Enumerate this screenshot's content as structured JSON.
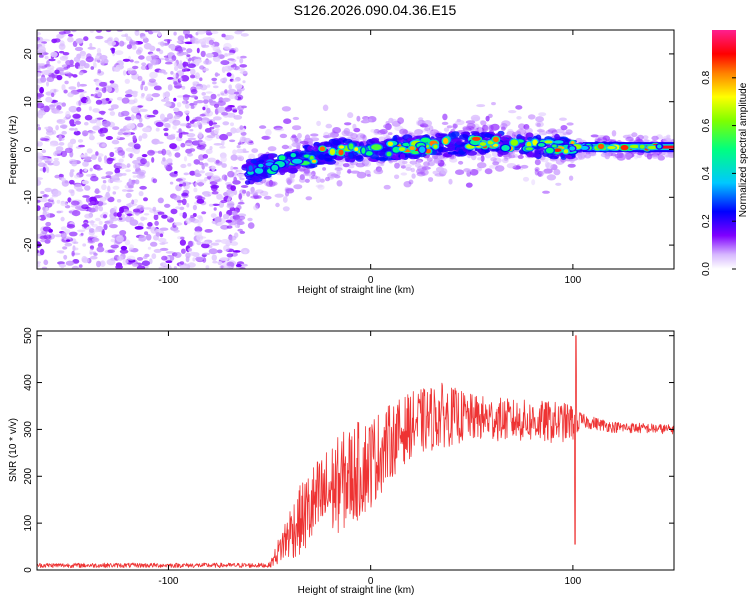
{
  "title": "S126.2026.090.04.36.E15",
  "chart_data": [
    {
      "type": "heatmap",
      "name": "spectrogram",
      "xlabel": "Height of straight line (km)",
      "ylabel": "Frequency (Hz)",
      "xlim": [
        -165,
        150
      ],
      "ylim": [
        -25,
        25
      ],
      "xticks": [
        -100,
        0,
        100
      ],
      "yticks": [
        -20,
        -10,
        0,
        10,
        20
      ],
      "noise_region_x": [
        -165,
        -62
      ],
      "signal_track": [
        {
          "x": -62,
          "y": -5
        },
        {
          "x": -55,
          "y": -4
        },
        {
          "x": -45,
          "y": -3
        },
        {
          "x": -35,
          "y": -2
        },
        {
          "x": -25,
          "y": -1
        },
        {
          "x": -15,
          "y": 0
        },
        {
          "x": 0,
          "y": 0
        },
        {
          "x": 20,
          "y": 0.5
        },
        {
          "x": 40,
          "y": 1
        },
        {
          "x": 55,
          "y": 1.5
        },
        {
          "x": 70,
          "y": 1
        },
        {
          "x": 90,
          "y": 0.5
        },
        {
          "x": 105,
          "y": 0.5
        },
        {
          "x": 150,
          "y": 0.5
        }
      ],
      "colorbar": {
        "label": "Normalized spectral amplitude",
        "range": [
          0,
          1
        ],
        "ticks": [
          "0.0",
          "0.2",
          "0.4",
          "0.6",
          "0.8"
        ]
      }
    },
    {
      "type": "line",
      "name": "snr",
      "xlabel": "Height of straight line (km)",
      "ylabel": "SNR (10 * v/v)",
      "xlim": [
        -165,
        150
      ],
      "ylim": [
        0,
        510
      ],
      "xticks": [
        -100,
        0,
        100
      ],
      "yticks": [
        0,
        100,
        200,
        300,
        400,
        500
      ],
      "color": "#ee3333",
      "envelope": [
        {
          "x": -165,
          "mean": 10,
          "spread": 5
        },
        {
          "x": -50,
          "mean": 10,
          "spread": 5
        },
        {
          "x": -47,
          "mean": 30,
          "spread": 20
        },
        {
          "x": -40,
          "mean": 80,
          "spread": 60
        },
        {
          "x": -30,
          "mean": 130,
          "spread": 90
        },
        {
          "x": -20,
          "mean": 170,
          "spread": 100
        },
        {
          "x": -10,
          "mean": 200,
          "spread": 110
        },
        {
          "x": 0,
          "mean": 230,
          "spread": 100
        },
        {
          "x": 10,
          "mean": 275,
          "spread": 80
        },
        {
          "x": 20,
          "mean": 310,
          "spread": 70
        },
        {
          "x": 35,
          "mean": 330,
          "spread": 70
        },
        {
          "x": 50,
          "mean": 325,
          "spread": 50
        },
        {
          "x": 70,
          "mean": 320,
          "spread": 45
        },
        {
          "x": 90,
          "mean": 315,
          "spread": 45
        },
        {
          "x": 100,
          "mean": 315,
          "spread": 40
        },
        {
          "x": 105,
          "mean": 318,
          "spread": 15
        },
        {
          "x": 120,
          "mean": 305,
          "spread": 12
        },
        {
          "x": 150,
          "mean": 300,
          "spread": 10
        }
      ],
      "spike_peak": {
        "x": 101.5,
        "y": 500
      },
      "spike_dip": {
        "x": 101,
        "y": 55
      }
    }
  ]
}
